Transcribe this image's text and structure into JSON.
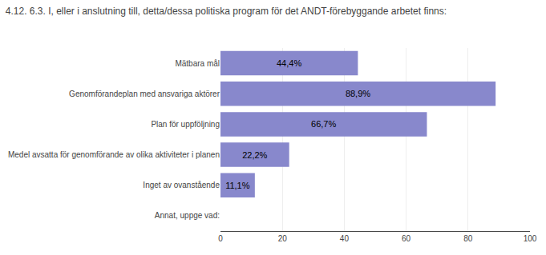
{
  "chart_data": {
    "type": "bar",
    "title": "4.12. 6.3. I, eller i anslutning till, detta/dessa politiska program för det ANDT-förebyggande arbetet finns:",
    "orientation": "horizontal",
    "categories": [
      "Mätbara mål",
      "Genomförandeplan med ansvariga aktörer",
      "Plan för uppföljning",
      "Medel avsatta för genomförande av olika aktiviteter i planen",
      "Inget av ovanstående",
      "Annat, uppge vad:"
    ],
    "values": [
      44.4,
      88.9,
      66.7,
      22.2,
      11.1,
      0.0
    ],
    "value_labels": [
      "44,4%",
      "88,9%",
      "66,7%",
      "22,2%",
      "11,1%",
      null
    ],
    "data_labels": true,
    "color": "#8888cc",
    "xlim": [
      0,
      100
    ],
    "xticks": [
      0,
      20,
      40,
      60,
      80,
      100
    ],
    "grid": true
  }
}
